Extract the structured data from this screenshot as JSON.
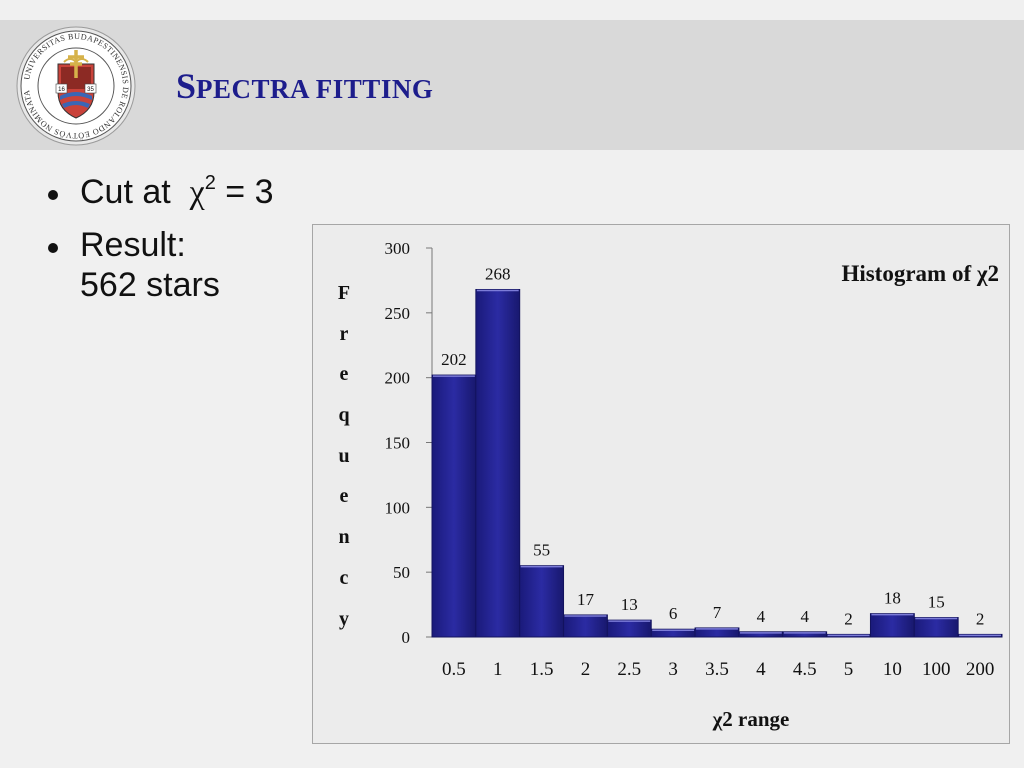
{
  "slide": {
    "title_first": "S",
    "title_rest": "pectra fitting",
    "seal_text": "UNIVERSITAS BUDAPESTINENSIS DE ROLANDO EÖTVÖS NOMINATA",
    "seal_year_left": "16",
    "seal_year_right": "35"
  },
  "bullets": [
    {
      "pre": "Cut at  ",
      "sym": "χ",
      "sup": "2",
      "post": " = 3"
    },
    {
      "line1": "Result:",
      "line2": "562 stars"
    }
  ],
  "colors": {
    "bar_fill": "#2b2ba3",
    "bar_edge": "#13135e",
    "title": "#1d1d8c"
  },
  "chart_data": {
    "type": "bar",
    "title": "Histogram of χ2",
    "xlabel": "χ2 range",
    "ylabel": "Frequency",
    "ylim": [
      0,
      300
    ],
    "yticks": [
      0,
      50,
      100,
      150,
      200,
      250,
      300
    ],
    "categories": [
      "0.5",
      "1",
      "1.5",
      "2",
      "2.5",
      "3",
      "3.5",
      "4",
      "4.5",
      "5",
      "10",
      "100",
      "200"
    ],
    "values": [
      202,
      268,
      55,
      17,
      13,
      6,
      7,
      4,
      4,
      2,
      18,
      15,
      2
    ],
    "grid": false,
    "legend": "none"
  }
}
